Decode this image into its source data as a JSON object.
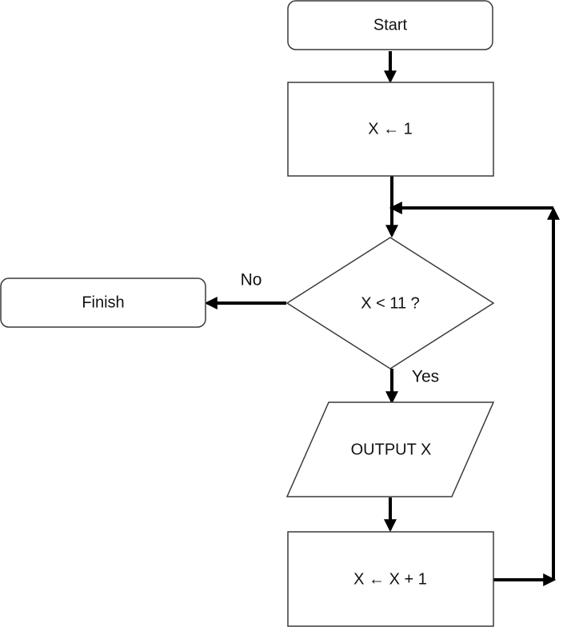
{
  "nodes": {
    "start": {
      "label": "Start"
    },
    "init": {
      "label": "X ← 1"
    },
    "decision": {
      "label": "X < 11 ?"
    },
    "finish": {
      "label": "Finish"
    },
    "output": {
      "label": "OUTPUT X"
    },
    "increment": {
      "label": "X ← X + 1"
    }
  },
  "edges": {
    "no_label": "No",
    "yes_label": "Yes"
  },
  "colors": {
    "shape_stroke": "#3a3a3a",
    "connector": "#000000",
    "background": "#ffffff"
  }
}
